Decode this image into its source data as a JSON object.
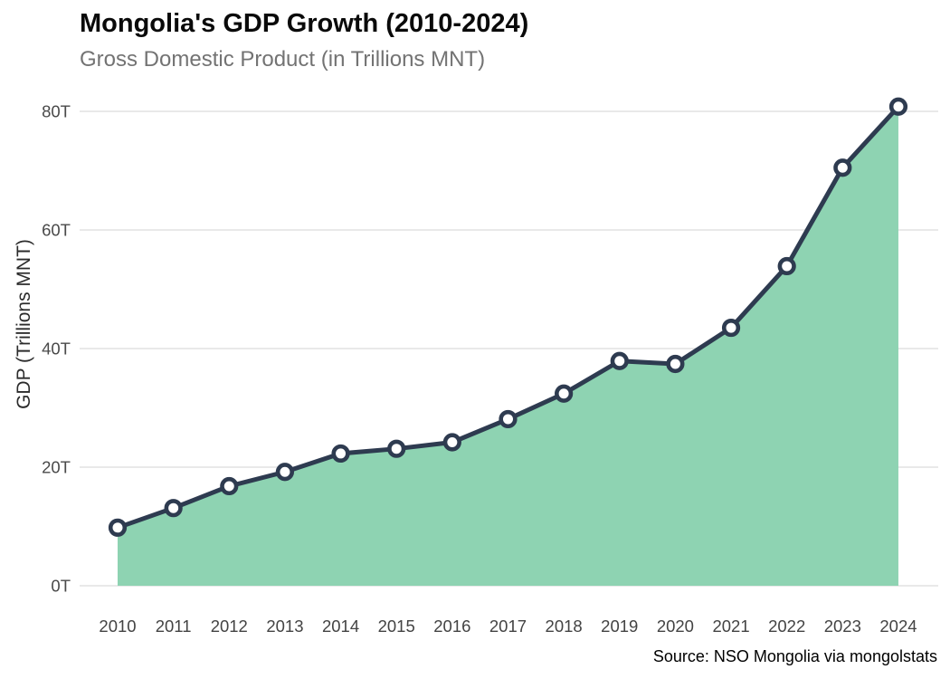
{
  "header": {
    "title": "Mongolia's GDP Growth (2010-2024)",
    "subtitle": "Gross Domestic Product (in Trillions MNT)"
  },
  "axes": {
    "y_label": "GDP (Trillions MNT)",
    "y_tick_labels": [
      "0T",
      "20T",
      "40T",
      "60T",
      "80T"
    ],
    "x_tick_labels": [
      "2010",
      "2011",
      "2012",
      "2013",
      "2014",
      "2015",
      "2016",
      "2017",
      "2018",
      "2019",
      "2020",
      "2021",
      "2022",
      "2023",
      "2024"
    ]
  },
  "footer": {
    "source": "Source: NSO Mongolia via mongolstats"
  },
  "colors": {
    "area_fill": "#8ed3b2",
    "line": "#2e3b50",
    "marker_fill": "#ffffff",
    "marker_stroke": "#2e3b50",
    "gridline": "#e9e9e9",
    "title_text": "#0a0a0a",
    "subtitle_text": "#737373",
    "axis_text": "#4a4a4a",
    "source_text": "#000000",
    "background": "#ffffff"
  },
  "chart_data": {
    "type": "area",
    "title": "Mongolia's GDP Growth (2010-2024)",
    "subtitle": "Gross Domestic Product (in Trillions MNT)",
    "xlabel": "",
    "ylabel": "GDP (Trillions MNT)",
    "categories": [
      "2010",
      "2011",
      "2012",
      "2013",
      "2014",
      "2015",
      "2016",
      "2017",
      "2018",
      "2019",
      "2020",
      "2021",
      "2022",
      "2023",
      "2024"
    ],
    "series": [
      {
        "name": "GDP (Trillions MNT)",
        "values": [
          9.8,
          13.1,
          16.8,
          19.2,
          22.3,
          23.1,
          24.2,
          28.1,
          32.4,
          37.9,
          37.4,
          43.5,
          53.9,
          70.5,
          80.8
        ]
      }
    ],
    "y_ticks": [
      {
        "value": 0,
        "label": "0T"
      },
      {
        "value": 20,
        "label": "20T"
      },
      {
        "value": 40,
        "label": "40T"
      },
      {
        "value": 60,
        "label": "60T"
      },
      {
        "value": 80,
        "label": "80T"
      }
    ],
    "ylim": [
      0,
      83
    ],
    "grid": "horizontal",
    "legend": "none",
    "marker_style": "open-circle",
    "source": "Source: NSO Mongolia via mongolstats"
  }
}
